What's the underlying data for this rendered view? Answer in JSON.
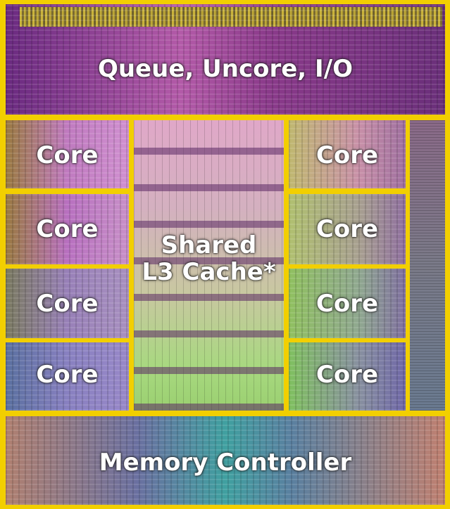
{
  "regions": {
    "top": "Queue, Uncore, I/O",
    "cache_line1": "Shared",
    "cache_line2": "L3 Cache*",
    "memory": "Memory Controller",
    "cores": [
      "Core",
      "Core",
      "Core",
      "Core",
      "Core",
      "Core",
      "Core",
      "Core"
    ]
  },
  "colors": {
    "border": "#f2cf00",
    "label": "#ffffff"
  }
}
